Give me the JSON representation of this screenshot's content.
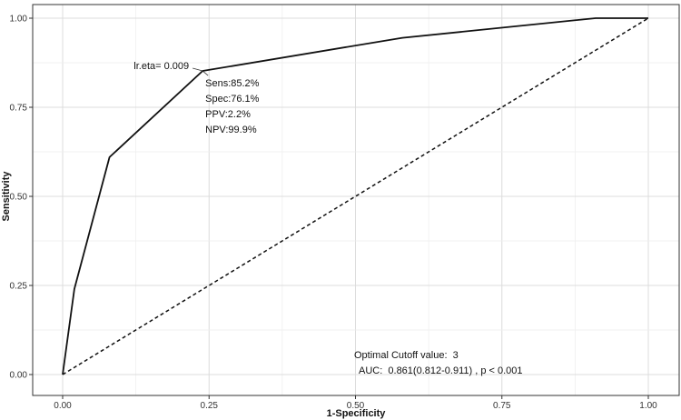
{
  "chart_data": {
    "type": "line",
    "title": "",
    "xlabel": "1-Specificity",
    "ylabel": "Sensitivity",
    "xlim": [
      0,
      1
    ],
    "ylim": [
      0,
      1
    ],
    "grid": true,
    "x_ticks": [
      0.0,
      0.25,
      0.5,
      0.75,
      1.0
    ],
    "x_tick_labels": [
      "0.00",
      "0.25",
      "0.50",
      "0.75",
      "1.00"
    ],
    "y_ticks": [
      0.0,
      0.25,
      0.5,
      0.75,
      1.0
    ],
    "y_tick_labels": [
      "0.00",
      "0.25",
      "0.50",
      "0.75",
      "1.00"
    ],
    "series": [
      {
        "style": "solid",
        "x": [
          0.0,
          0.02,
          0.08,
          0.239,
          0.58,
          0.91,
          1.0
        ],
        "y": [
          0.0,
          0.24,
          0.61,
          0.852,
          0.945,
          1.0,
          1.0
        ]
      },
      {
        "style": "dashed",
        "x": [
          0.0,
          1.0
        ],
        "y": [
          0.0,
          1.0
        ]
      }
    ],
    "cutoff_point": {
      "x": 0.239,
      "y": 0.852,
      "label": "lr.eta= 0.009",
      "stats": [
        "Sens:85.2%",
        "Spec:76.1%",
        "PPV:2.2%",
        "NPV:99.9%"
      ]
    },
    "annotations": [
      "Optimal Cutoff value:  3",
      "AUC:  0.861(0.812-0.911) , p < 0.001"
    ]
  }
}
